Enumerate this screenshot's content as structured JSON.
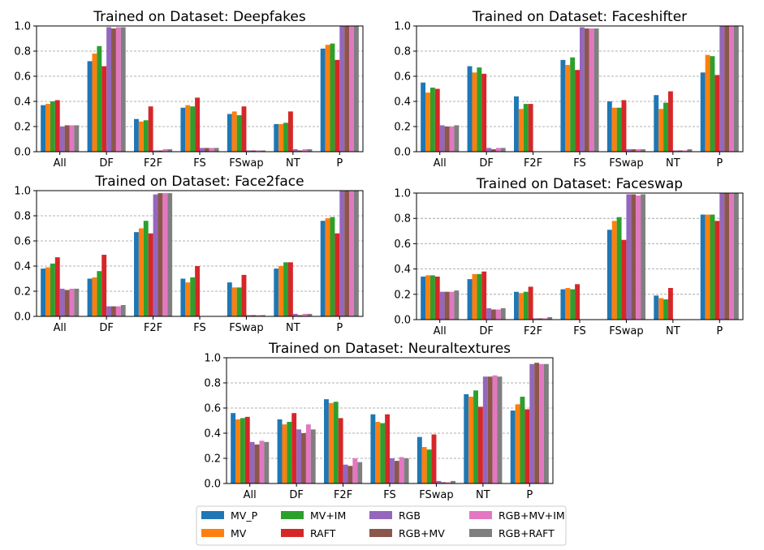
{
  "series": [
    {
      "name": "MV_P",
      "color": "#1f77b4"
    },
    {
      "name": "MV",
      "color": "#ff7f0e"
    },
    {
      "name": "MV+IM",
      "color": "#2ca02c"
    },
    {
      "name": "RAFT",
      "color": "#d62728"
    },
    {
      "name": "RGB",
      "color": "#9467bd"
    },
    {
      "name": "RGB+MV",
      "color": "#8c564b"
    },
    {
      "name": "RGB+MV+IM",
      "color": "#e377c2"
    },
    {
      "name": "RGB+RAFT",
      "color": "#7f7f7f"
    }
  ],
  "chart_data": [
    {
      "type": "bar",
      "title": "Trained on Dataset: Deepfakes",
      "categories": [
        "All",
        "DF",
        "F2F",
        "FS",
        "FSwap",
        "NT",
        "P"
      ],
      "ylim": [
        0,
        1.0
      ],
      "yticks": [
        "0.0",
        "0.2",
        "0.4",
        "0.6",
        "0.8",
        "1.0"
      ],
      "grid": true,
      "values": [
        [
          0.37,
          0.38,
          0.4,
          0.41,
          0.2,
          0.21,
          0.21,
          0.21
        ],
        [
          0.72,
          0.78,
          0.84,
          0.68,
          0.99,
          0.98,
          0.99,
          0.99
        ],
        [
          0.26,
          0.24,
          0.25,
          0.36,
          0.01,
          0.01,
          0.02,
          0.02
        ],
        [
          0.35,
          0.37,
          0.36,
          0.43,
          0.03,
          0.03,
          0.03,
          0.03
        ],
        [
          0.3,
          0.32,
          0.29,
          0.36,
          0.01,
          0.01,
          0.01,
          0.01
        ],
        [
          0.22,
          0.22,
          0.23,
          0.32,
          0.02,
          0.01,
          0.02,
          0.02
        ],
        [
          0.82,
          0.85,
          0.86,
          0.73,
          1.0,
          1.0,
          1.0,
          1.0
        ]
      ]
    },
    {
      "type": "bar",
      "title": "Trained on Dataset: Faceshifter",
      "categories": [
        "All",
        "DF",
        "F2F",
        "FS",
        "FSwap",
        "NT",
        "P"
      ],
      "ylim": [
        0,
        1.0
      ],
      "yticks": [
        "0.0",
        "0.2",
        "0.4",
        "0.6",
        "0.8",
        "1.0"
      ],
      "grid": true,
      "values": [
        [
          0.55,
          0.47,
          0.51,
          0.5,
          0.21,
          0.2,
          0.2,
          0.21
        ],
        [
          0.68,
          0.63,
          0.67,
          0.62,
          0.03,
          0.02,
          0.03,
          0.03
        ],
        [
          0.44,
          0.34,
          0.38,
          0.38,
          0.0,
          0.0,
          0.0,
          0.0
        ],
        [
          0.73,
          0.69,
          0.75,
          0.65,
          0.99,
          0.98,
          0.98,
          0.98
        ],
        [
          0.4,
          0.35,
          0.35,
          0.41,
          0.02,
          0.02,
          0.02,
          0.02
        ],
        [
          0.45,
          0.34,
          0.39,
          0.48,
          0.01,
          0.01,
          0.01,
          0.02
        ],
        [
          0.63,
          0.77,
          0.76,
          0.61,
          1.0,
          1.0,
          1.0,
          1.0
        ]
      ]
    },
    {
      "type": "bar",
      "title": "Trained on Dataset: Face2face",
      "categories": [
        "All",
        "DF",
        "F2F",
        "FS",
        "FSwap",
        "NT",
        "P"
      ],
      "ylim": [
        0,
        1.0
      ],
      "yticks": [
        "0.0",
        "0.2",
        "0.4",
        "0.6",
        "0.8",
        "1.0"
      ],
      "grid": true,
      "values": [
        [
          0.38,
          0.39,
          0.42,
          0.47,
          0.22,
          0.21,
          0.22,
          0.22
        ],
        [
          0.3,
          0.31,
          0.36,
          0.49,
          0.08,
          0.08,
          0.08,
          0.09
        ],
        [
          0.67,
          0.7,
          0.76,
          0.66,
          0.97,
          0.98,
          0.98,
          0.98
        ],
        [
          0.3,
          0.27,
          0.31,
          0.4,
          0.0,
          0.0,
          0.0,
          0.0
        ],
        [
          0.27,
          0.23,
          0.23,
          0.33,
          0.01,
          0.01,
          0.01,
          0.01
        ],
        [
          0.38,
          0.4,
          0.43,
          0.43,
          0.02,
          0.01,
          0.02,
          0.02
        ],
        [
          0.76,
          0.78,
          0.79,
          0.66,
          1.0,
          1.0,
          1.0,
          1.0
        ]
      ]
    },
    {
      "type": "bar",
      "title": "Trained on Dataset: Faceswap",
      "categories": [
        "All",
        "DF",
        "F2F",
        "FS",
        "FSwap",
        "NT",
        "P"
      ],
      "ylim": [
        0,
        1.0
      ],
      "yticks": [
        "0.0",
        "0.2",
        "0.4",
        "0.6",
        "0.8",
        "1.0"
      ],
      "grid": true,
      "values": [
        [
          0.34,
          0.35,
          0.35,
          0.34,
          0.22,
          0.22,
          0.22,
          0.23
        ],
        [
          0.32,
          0.36,
          0.36,
          0.38,
          0.09,
          0.08,
          0.08,
          0.09
        ],
        [
          0.22,
          0.21,
          0.22,
          0.26,
          0.01,
          0.01,
          0.01,
          0.02
        ],
        [
          0.24,
          0.25,
          0.24,
          0.28,
          0.0,
          0.0,
          0.0,
          0.0
        ],
        [
          0.71,
          0.78,
          0.81,
          0.63,
          0.99,
          0.99,
          0.98,
          0.99
        ],
        [
          0.19,
          0.17,
          0.16,
          0.25,
          0.0,
          0.0,
          0.0,
          0.0
        ],
        [
          0.83,
          0.83,
          0.83,
          0.78,
          1.0,
          1.0,
          1.0,
          1.0
        ]
      ]
    },
    {
      "type": "bar",
      "title": "Trained on Dataset: Neuraltextures",
      "categories": [
        "All",
        "DF",
        "F2F",
        "FS",
        "FSwap",
        "NT",
        "P"
      ],
      "ylim": [
        0,
        1.0
      ],
      "yticks": [
        "0.0",
        "0.2",
        "0.4",
        "0.6",
        "0.8",
        "1.0"
      ],
      "grid": true,
      "values": [
        [
          0.56,
          0.51,
          0.52,
          0.53,
          0.33,
          0.31,
          0.34,
          0.33
        ],
        [
          0.51,
          0.47,
          0.49,
          0.56,
          0.43,
          0.4,
          0.47,
          0.43
        ],
        [
          0.67,
          0.64,
          0.65,
          0.52,
          0.15,
          0.14,
          0.2,
          0.17
        ],
        [
          0.55,
          0.49,
          0.48,
          0.55,
          0.2,
          0.18,
          0.21,
          0.2
        ],
        [
          0.37,
          0.29,
          0.27,
          0.39,
          0.02,
          0.01,
          0.01,
          0.02
        ],
        [
          0.71,
          0.69,
          0.74,
          0.61,
          0.85,
          0.85,
          0.86,
          0.85
        ],
        [
          0.58,
          0.63,
          0.69,
          0.59,
          0.95,
          0.96,
          0.95,
          0.95
        ]
      ]
    }
  ]
}
